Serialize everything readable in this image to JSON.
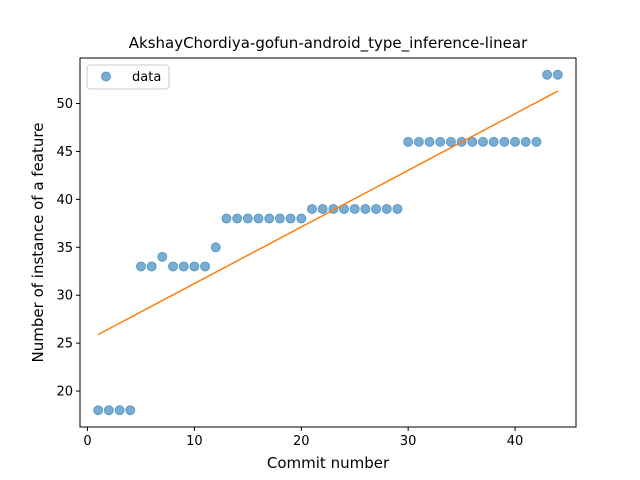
{
  "chart_data": {
    "type": "scatter",
    "title": "AkshayChordiya-gofun-android_type_inference-linear",
    "xlabel": "Commit number",
    "ylabel": "Number of instance of a feature",
    "xlim": [
      -0.7,
      45.7
    ],
    "ylim": [
      16.25,
      54.75
    ],
    "xticks": [
      0,
      10,
      20,
      30,
      40
    ],
    "yticks": [
      20,
      25,
      30,
      35,
      40,
      45,
      50
    ],
    "legend": {
      "position": "top-left",
      "entries": [
        "data"
      ]
    },
    "grid": false,
    "series": [
      {
        "name": "data",
        "kind": "scatter",
        "color": "#1f77b4",
        "x": [
          1,
          2,
          3,
          4,
          5,
          6,
          7,
          8,
          9,
          10,
          11,
          12,
          13,
          14,
          15,
          16,
          17,
          18,
          19,
          20,
          21,
          22,
          23,
          24,
          25,
          26,
          27,
          28,
          29,
          30,
          31,
          32,
          33,
          34,
          35,
          36,
          37,
          38,
          39,
          40,
          41,
          42,
          43,
          44
        ],
        "y": [
          18,
          18,
          18,
          18,
          33,
          33,
          34,
          33,
          33,
          33,
          33,
          35,
          38,
          38,
          38,
          38,
          38,
          38,
          38,
          38,
          39,
          39,
          39,
          39,
          39,
          39,
          39,
          39,
          39,
          46,
          46,
          46,
          46,
          46,
          46,
          46,
          46,
          46,
          46,
          46,
          46,
          46,
          53,
          53
        ]
      },
      {
        "kind": "line",
        "color": "#ff7f0e",
        "x": [
          1,
          44
        ],
        "y": [
          25.9,
          51.3
        ]
      }
    ]
  }
}
